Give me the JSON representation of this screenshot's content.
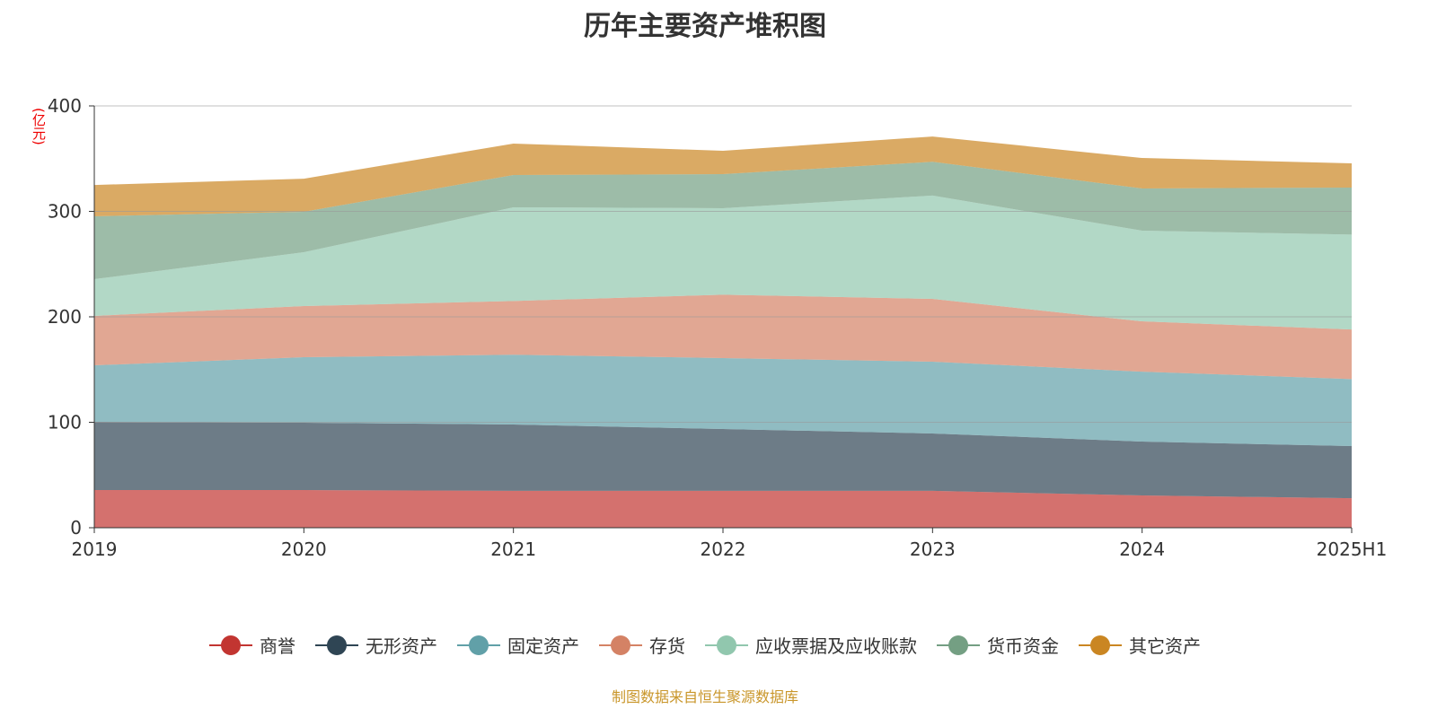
{
  "chart_data": {
    "type": "area",
    "stacked": true,
    "title": "历年主要资产堆积图",
    "ylabel": "(亿元)",
    "xlabel": "",
    "categories": [
      "2019",
      "2020",
      "2021",
      "2022",
      "2023",
      "2024",
      "2025H1"
    ],
    "ylim": [
      0,
      400
    ],
    "yticks": [
      0,
      100,
      200,
      300,
      400
    ],
    "grid": true,
    "legend_position": "bottom",
    "series": [
      {
        "name": "商誉",
        "color": "#c23531",
        "values": [
          35.7,
          35.7,
          35.0,
          35.0,
          35.0,
          30.6,
          28.0
        ]
      },
      {
        "name": "无形资产",
        "color": "#2f4554",
        "values": [
          64.7,
          63.9,
          62.9,
          58.6,
          54.4,
          51.1,
          49.4
        ]
      },
      {
        "name": "固定资产",
        "color": "#61a0a8",
        "values": [
          53.6,
          62.1,
          66.1,
          67.3,
          68.0,
          66.3,
          63.6
        ]
      },
      {
        "name": "存货",
        "color": "#d48265",
        "values": [
          46.9,
          48.5,
          51.0,
          60.1,
          59.6,
          47.7,
          47.0
        ]
      },
      {
        "name": "应收票据及应收账款",
        "color": "#91c7ae",
        "values": [
          34.8,
          51.1,
          88.8,
          82.0,
          98.0,
          86.0,
          90.0
        ]
      },
      {
        "name": "货币资金",
        "color": "#749f83",
        "values": [
          59.6,
          38.3,
          30.7,
          32.3,
          32.0,
          40.0,
          44.6
        ]
      },
      {
        "name": "其它资产",
        "color": "#ca8622",
        "values": [
          29.7,
          31.4,
          29.8,
          22.1,
          24.0,
          28.9,
          22.9
        ]
      }
    ]
  },
  "footer": "制图数据来自恒生聚源数据库"
}
